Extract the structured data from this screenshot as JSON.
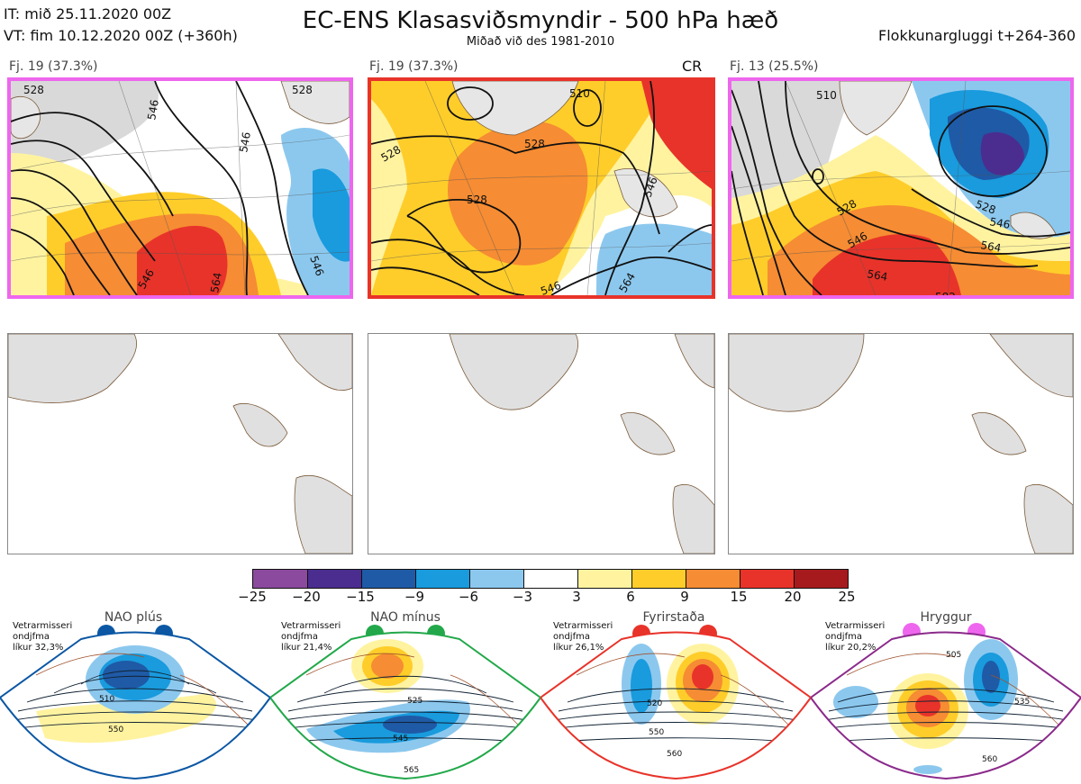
{
  "header": {
    "it_line": "IT: mið 25.11.2020 00Z",
    "vt_line": "VT: fim 10.12.2020 00Z  (+360h)",
    "title": "EC-ENS Klasasviðsmyndir - 500 hPa hæð",
    "subtitle": "Miðað við des 1981-2010",
    "window": "Flokkunargluggi t+264-360"
  },
  "panels": [
    {
      "label": "Fj. 19 (37.3%)",
      "border_color": "#ee66ee",
      "tag": ""
    },
    {
      "label": "Fj. 19 (37.3%)",
      "border_color": "#e8332a",
      "tag": "CR"
    },
    {
      "label": "Fj. 13 (25.5%)",
      "border_color": "#ee66ee",
      "tag": ""
    }
  ],
  "contour_labels": {
    "panel1": [
      "528",
      "546",
      "528",
      "546",
      "564",
      "546",
      "546"
    ],
    "panel2": [
      "510",
      "528",
      "528",
      "528",
      "546",
      "546",
      "564"
    ],
    "panel3": [
      "510",
      "528",
      "546",
      "528",
      "546",
      "564",
      "564",
      "582"
    ]
  },
  "colorbar": {
    "ticks": [
      "−25",
      "−20",
      "−15",
      "−9",
      "−6",
      "−3",
      "3",
      "6",
      "9",
      "15",
      "20",
      "25"
    ],
    "colors": [
      "#8b4a9e",
      "#4b2d8f",
      "#1f5aa6",
      "#199bdd",
      "#8cc8ee",
      "#ffffff",
      "#fff3a0",
      "#ffcd2a",
      "#f68c33",
      "#e8332a",
      "#a61a1d"
    ]
  },
  "regimes": [
    {
      "name": "NAO plús",
      "winter_label": "Vetrarmisseri\nondjfma\nlíkur 32,3%",
      "color": "#0b57a4",
      "contours": [
        "510",
        "550"
      ]
    },
    {
      "name": "NAO mínus",
      "winter_label": "Vetrarmisseri\nondjfma\nlíkur 21,4%",
      "color": "#22a84a",
      "contours": [
        "525",
        "545",
        "565"
      ]
    },
    {
      "name": "Fyrirstaða",
      "winter_label": "Vetrarmisseri\nondjfma\nlíkur 26,1%",
      "color": "#e8332a",
      "contours": [
        "520",
        "550",
        "560"
      ]
    },
    {
      "name": "Hryggur",
      "winter_label": "Vetrarmisseri\nondjfma\nlíkur 20,2%",
      "color": "#ee66ee",
      "contours": [
        "505",
        "535",
        "560"
      ]
    }
  ]
}
